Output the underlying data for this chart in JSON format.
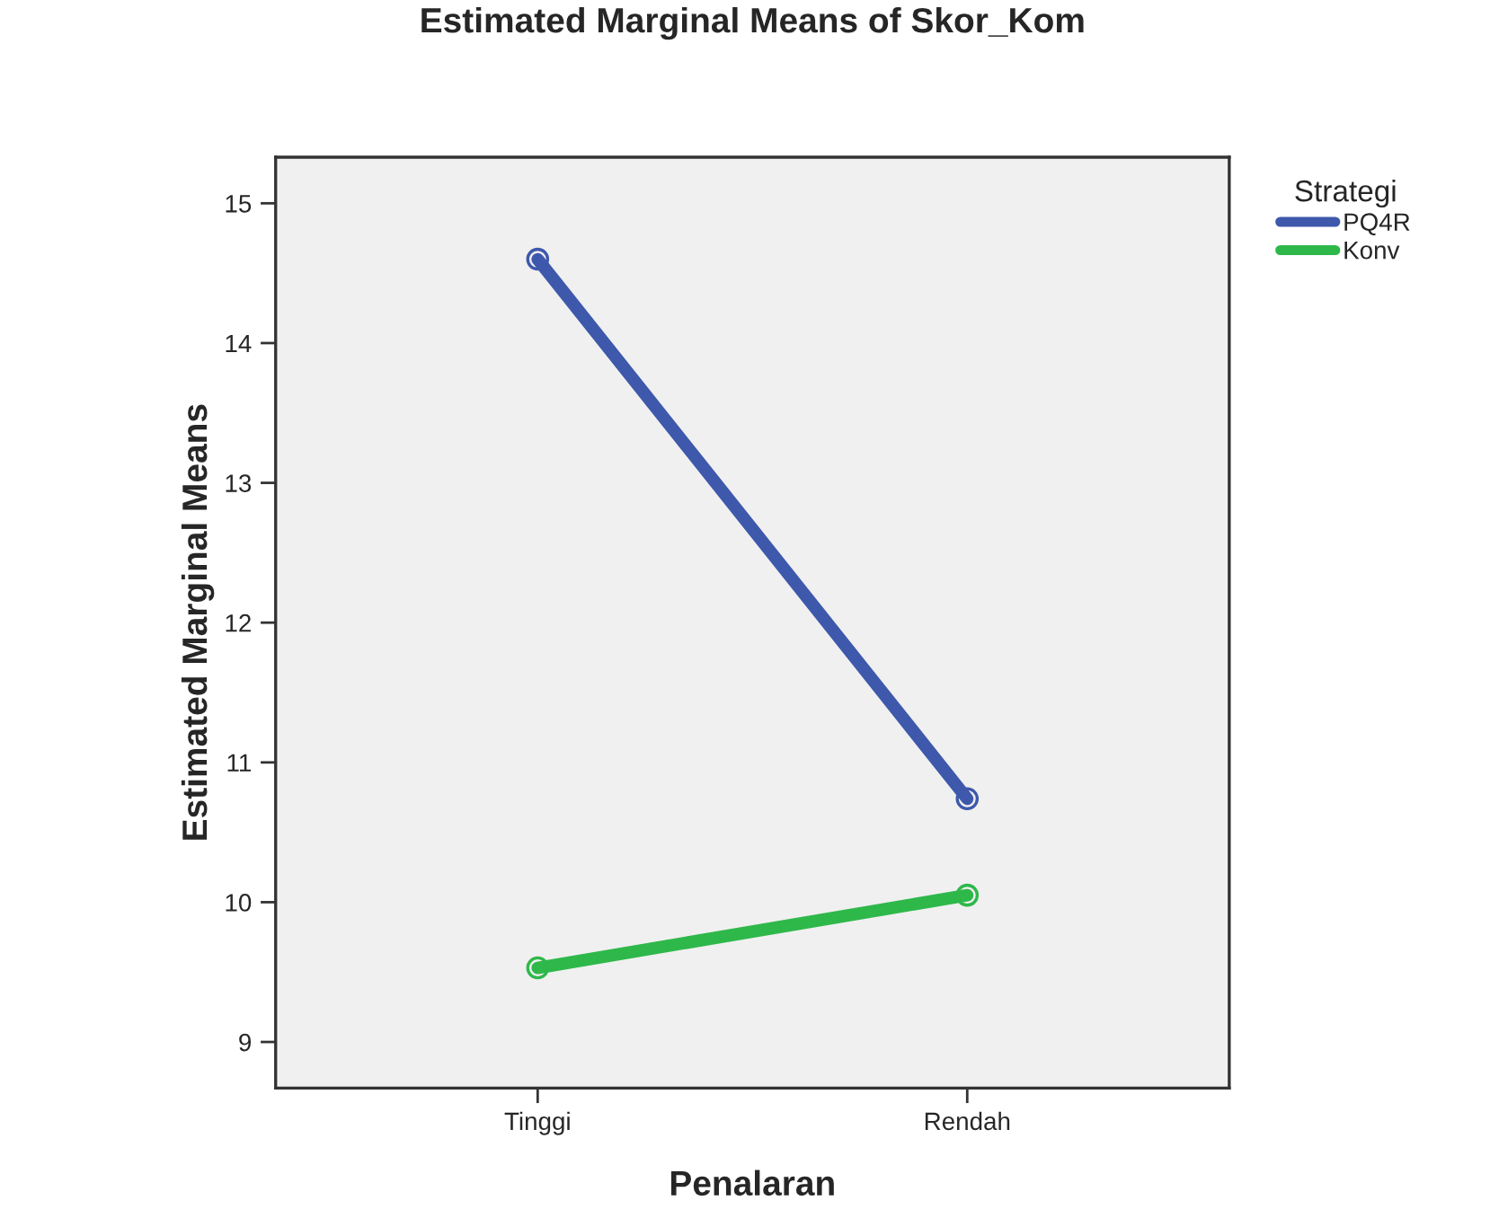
{
  "chart_data": {
    "type": "line",
    "title": "Estimated Marginal Means of Skor_Kom",
    "xlabel": "Penalaran",
    "ylabel": "Estimated Marginal Means",
    "legend_title": "Strategi",
    "legend": "right",
    "marker": "circle",
    "grid": false,
    "categories": [
      "Tinggi",
      "Rendah"
    ],
    "series": [
      {
        "name": "PQ4R",
        "color": "#3e58ac",
        "values": [
          14.6,
          10.74
        ]
      },
      {
        "name": "Konv",
        "color": "#2eb84a",
        "values": [
          9.53,
          10.05
        ]
      }
    ],
    "ylim": [
      8.67,
      15.33
    ],
    "yticks": [
      9,
      10,
      11,
      12,
      13,
      14,
      15
    ]
  }
}
